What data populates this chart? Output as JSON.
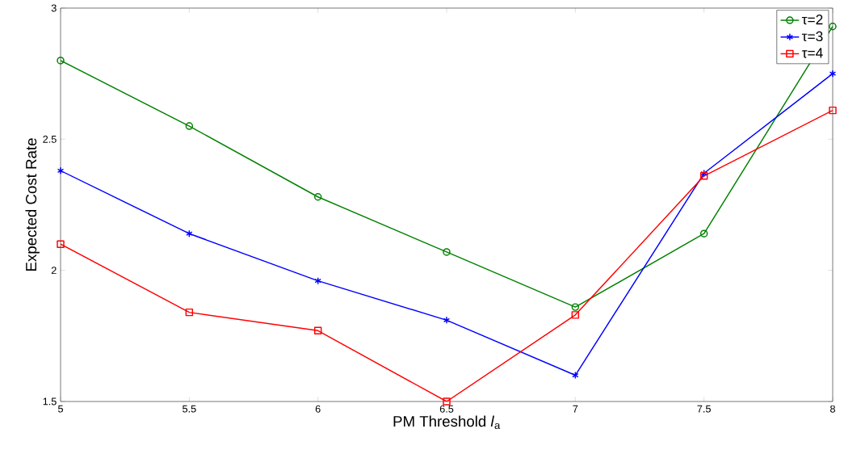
{
  "chart_data": {
    "type": "line",
    "xlabel": "PM Threshold *l*$_{a}$",
    "ylabel": "Expected Cost Rate",
    "x": [
      5,
      5.5,
      6,
      6.5,
      7,
      7.5,
      8
    ],
    "series": [
      {
        "name": "τ=2",
        "color": "#008000",
        "marker": "circle",
        "values": [
          2.8,
          2.55,
          2.28,
          2.07,
          1.86,
          2.14,
          2.93
        ]
      },
      {
        "name": "τ=3",
        "color": "#0000ff",
        "marker": "cross",
        "values": [
          2.38,
          2.14,
          1.96,
          1.81,
          1.6,
          2.37,
          2.75
        ]
      },
      {
        "name": "τ=4",
        "color": "#ff0000",
        "marker": "square",
        "values": [
          2.1,
          1.84,
          1.77,
          1.5,
          1.83,
          2.36,
          2.61
        ]
      }
    ],
    "xlim": [
      5,
      8
    ],
    "ylim": [
      1.5,
      3
    ],
    "xticks": [
      5,
      5.5,
      6,
      6.5,
      7,
      7.5,
      8
    ],
    "yticks": [
      1.5,
      2,
      2.5,
      3
    ],
    "legend": "top right",
    "grid": false,
    "line_style": "solid"
  }
}
